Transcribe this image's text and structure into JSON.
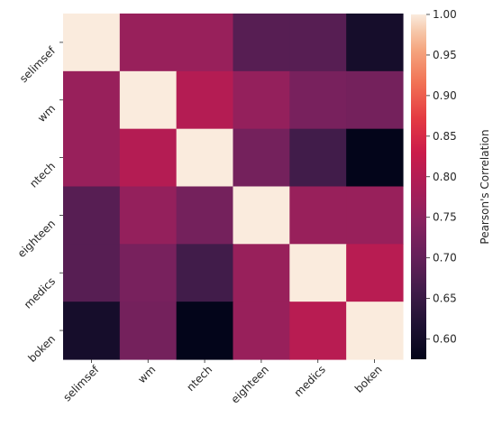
{
  "chart_data": {
    "type": "heatmap",
    "title": "",
    "xlabel": "",
    "ylabel": "",
    "x_labels": [
      "selimsef",
      "wm",
      "ntech",
      "eighteen",
      "medics",
      "boken"
    ],
    "y_labels": [
      "selimsef",
      "wm",
      "ntech",
      "eighteen",
      "medics",
      "boken"
    ],
    "values": [
      [
        1.0,
        0.765,
        0.765,
        0.685,
        0.685,
        0.605
      ],
      [
        0.765,
        1.0,
        0.8,
        0.76,
        0.725,
        0.72
      ],
      [
        0.765,
        0.8,
        1.0,
        0.72,
        0.66,
        0.575
      ],
      [
        0.685,
        0.76,
        0.72,
        1.0,
        0.765,
        0.765
      ],
      [
        0.685,
        0.725,
        0.66,
        0.765,
        1.0,
        0.805
      ],
      [
        0.605,
        0.72,
        0.575,
        0.765,
        0.805,
        1.0
      ]
    ],
    "colorbar": {
      "label": "Pearson's Correlation",
      "min": 0.575,
      "max": 1.0,
      "ticks": [
        "0.60",
        "0.65",
        "0.70",
        "0.75",
        "0.80",
        "0.85",
        "0.90",
        "0.95",
        "1.00"
      ],
      "colormap": "rocket"
    },
    "grid": false
  }
}
